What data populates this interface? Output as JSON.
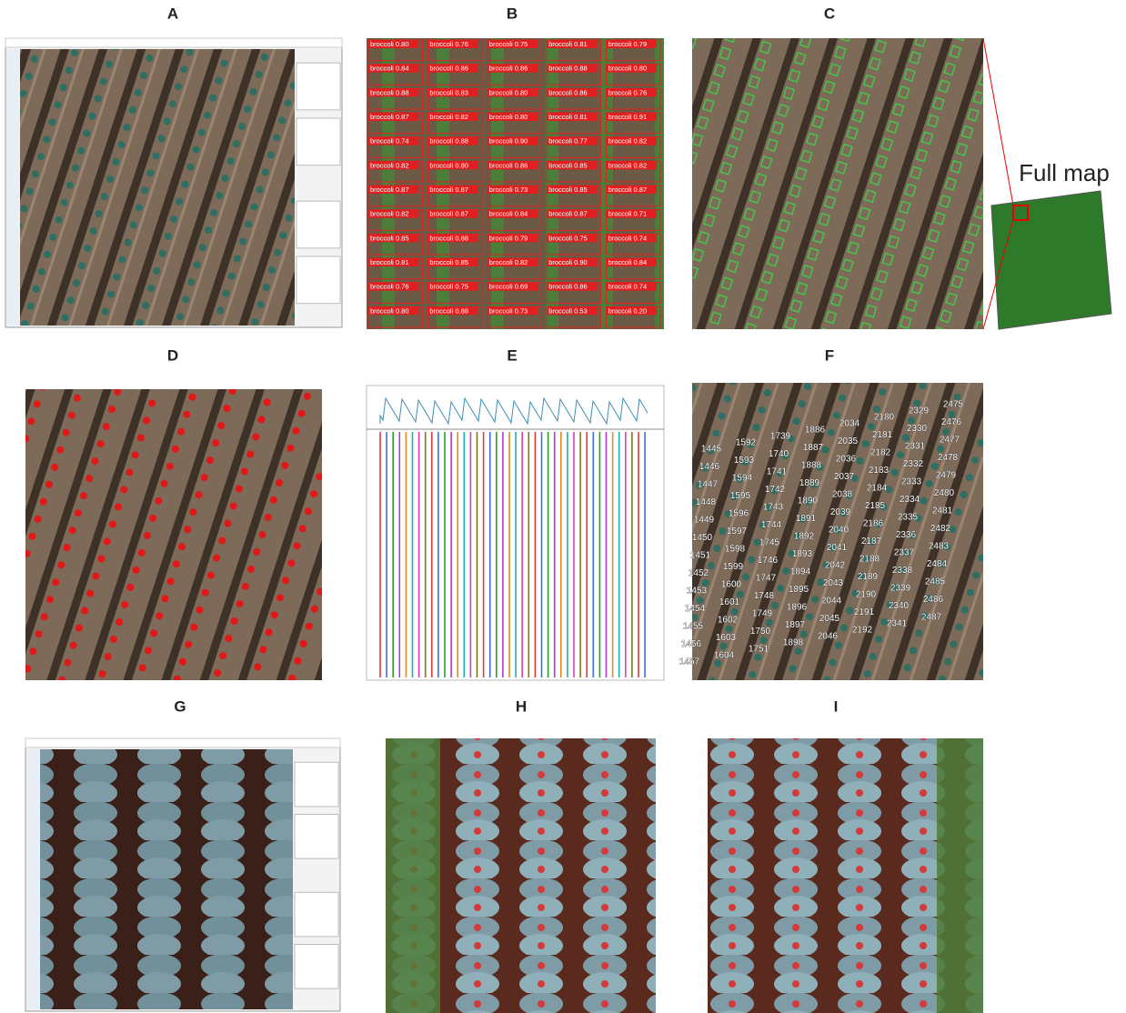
{
  "panels": [
    {
      "label": "A"
    },
    {
      "label": "B",
      "detections": [
        "broccoli 0.80",
        "broccoli 0.76",
        "broccoli 0.75",
        "broccoli 0.81",
        "broccoli 0.79",
        "broccoli 0.84",
        "broccoli 0.86",
        "broccoli 0.86",
        "broccoli 0.88",
        "broccoli 0.80",
        "broccoli 0.88",
        "broccoli 0.83",
        "broccoli 0.80",
        "broccoli 0.86",
        "broccoli 0.76",
        "broccoli 0.87",
        "broccoli 0.82",
        "broccoli 0.80",
        "broccoli 0.81",
        "broccoli 0.91",
        "broccoli 0.74",
        "broccoli 0.88",
        "broccoli 0.90",
        "broccoli 0.77",
        "broccoli 0.82",
        "broccoli 0.82",
        "broccoli 0.80",
        "broccoli 0.86",
        "broccoli 0.85",
        "broccoli 0.82",
        "broccoli 0.87",
        "broccoli 0.87",
        "broccoli 0.73",
        "broccoli 0.85",
        "broccoli 0.87",
        "broccoli 0.82",
        "broccoli 0.87",
        "broccoli 0.84",
        "broccoli 0.87",
        "broccoli 0.71",
        "broccoli 0.85",
        "broccoli 0.88",
        "broccoli 0.79",
        "broccoli 0.75",
        "broccoli 0.74",
        "broccoli 0.81",
        "broccoli 0.85",
        "broccoli 0.82",
        "broccoli 0.90",
        "broccoli 0.84",
        "broccoli 0.76",
        "broccoli 0.75",
        "broccoli 0.69",
        "broccoli 0.86",
        "broccoli 0.74",
        "broccoli 0.80",
        "broccoli 0.88",
        "broccoli 0.73",
        "broccoli 0.53",
        "broccoli 0.20"
      ]
    },
    {
      "label": "C",
      "inset_label": "Full map"
    },
    {
      "label": "D"
    },
    {
      "label": "E"
    },
    {
      "label": "F",
      "plant_ids": [
        [
          1445,
          1446,
          1447,
          1448,
          1449,
          1450,
          1451,
          1452,
          1453,
          1454,
          1455,
          1456,
          1457
        ],
        [
          1592,
          1593,
          1594,
          1595,
          1596,
          1597,
          1598,
          1599,
          1600,
          1601,
          1602,
          1603,
          1604
        ],
        [
          1739,
          1740,
          1741,
          1742,
          1743,
          1744,
          1745,
          1746,
          1747,
          1748,
          1749,
          1750,
          1751
        ],
        [
          1886,
          1887,
          1888,
          1889,
          1890,
          1891,
          1892,
          1893,
          1894,
          1895,
          1896,
          1897,
          1898
        ],
        [
          2034,
          2035,
          2036,
          2037,
          2038,
          2039,
          2040,
          2041,
          2042,
          2043,
          2044,
          2045,
          2046
        ],
        [
          2180,
          2181,
          2182,
          2183,
          2184,
          2185,
          2186,
          2187,
          2188,
          2189,
          2190,
          2191,
          2192
        ],
        [
          2329,
          2330,
          2331,
          2332,
          2333,
          2334,
          2335,
          2336,
          2337,
          2338,
          2339,
          2340,
          2341
        ],
        [
          2475,
          2476,
          2477,
          2478,
          2479,
          2480,
          2481,
          2482,
          2483,
          2484,
          2485,
          2486,
          2487
        ]
      ]
    },
    {
      "label": "G"
    },
    {
      "label": "H"
    },
    {
      "label": "I"
    }
  ]
}
